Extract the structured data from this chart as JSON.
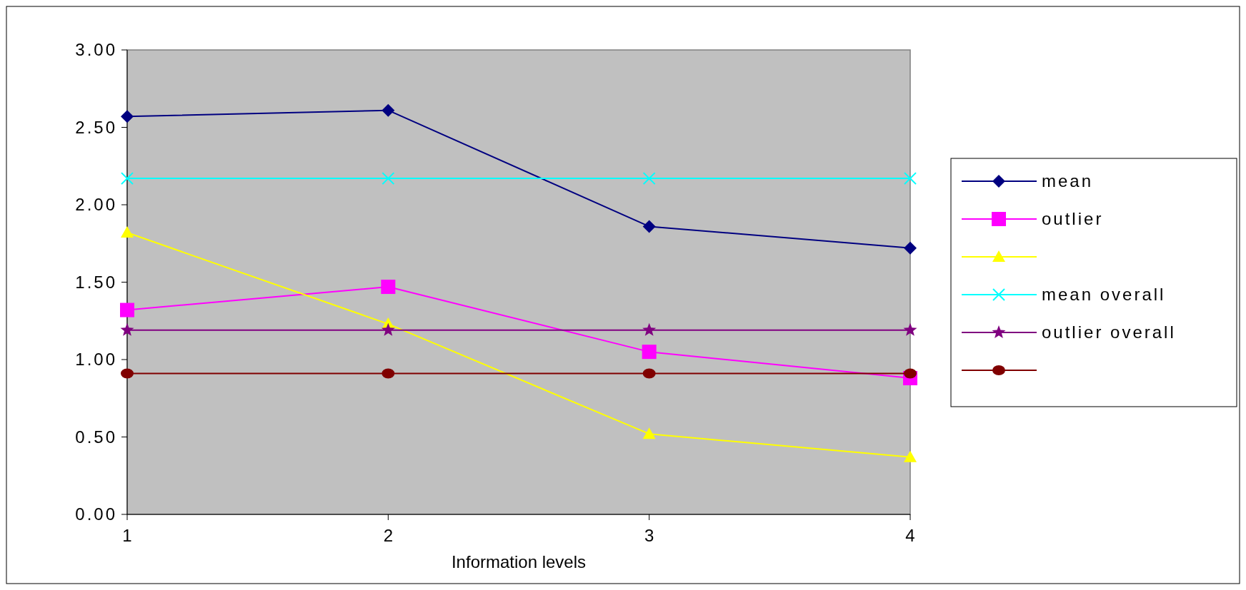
{
  "chart_data": {
    "type": "line",
    "xlabel": "Information levels",
    "categories": [
      "1",
      "2",
      "3",
      "4"
    ],
    "ylim": [
      0,
      3
    ],
    "yticks": [
      {
        "value": 0,
        "label": "0.00"
      },
      {
        "value": 0.5,
        "label": "0.50"
      },
      {
        "value": 1,
        "label": "1.00"
      },
      {
        "value": 1.5,
        "label": "1.50"
      },
      {
        "value": 2,
        "label": "2.00"
      },
      {
        "value": 2.5,
        "label": "2.50"
      },
      {
        "value": 3,
        "label": "3.00"
      }
    ],
    "grid": false,
    "legend": "right",
    "line_style": "solid",
    "series": [
      {
        "name": "mean",
        "color": "#000080",
        "marker": "diamond",
        "values": [
          2.57,
          2.61,
          1.86,
          1.72
        ]
      },
      {
        "name": "outlier",
        "color": "#ff00ff",
        "marker": "square",
        "values": [
          1.32,
          1.47,
          1.05,
          0.88
        ]
      },
      {
        "color": "#ffff00",
        "marker": "triangle",
        "values": [
          1.82,
          1.23,
          0.52,
          0.37
        ]
      },
      {
        "name": "mean overall",
        "color": "#00ffff",
        "marker": "cross",
        "values": [
          2.17,
          2.17,
          2.17,
          2.17
        ]
      },
      {
        "name": "outlier overall",
        "color": "#800080",
        "marker": "star",
        "values": [
          1.19,
          1.19,
          1.19,
          1.19
        ]
      },
      {
        "color": "#800000",
        "marker": "circle",
        "values": [
          0.91,
          0.91,
          0.91,
          0.91
        ]
      }
    ]
  }
}
